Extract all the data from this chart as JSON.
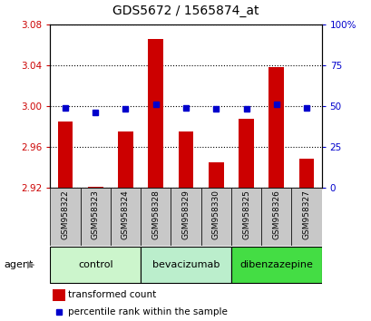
{
  "title": "GDS5672 / 1565874_at",
  "categories": [
    "GSM958322",
    "GSM958323",
    "GSM958324",
    "GSM958328",
    "GSM958329",
    "GSM958330",
    "GSM958325",
    "GSM958326",
    "GSM958327"
  ],
  "red_values": [
    2.985,
    2.921,
    2.975,
    3.065,
    2.975,
    2.945,
    2.987,
    3.038,
    2.948
  ],
  "blue_values": [
    49,
    46,
    48,
    51,
    49,
    48,
    48,
    51,
    49
  ],
  "ylim_left": [
    2.92,
    3.08
  ],
  "ylim_right": [
    0,
    100
  ],
  "yticks_left": [
    2.92,
    2.96,
    3.0,
    3.04,
    3.08
  ],
  "yticks_right_vals": [
    0,
    25,
    50,
    75,
    100
  ],
  "yticks_right_labels": [
    "0",
    "25",
    "50",
    "75",
    "100%"
  ],
  "groups": [
    {
      "label": "control",
      "indices": [
        0,
        1,
        2
      ],
      "color": "#ccf5cc"
    },
    {
      "label": "bevacizumab",
      "indices": [
        3,
        4,
        5
      ],
      "color": "#bbeecc"
    },
    {
      "label": "dibenzazepine",
      "indices": [
        6,
        7,
        8
      ],
      "color": "#44dd44"
    }
  ],
  "bar_color": "#cc0000",
  "dot_color": "#0000cc",
  "bar_width": 0.5,
  "plot_bg_color": "#ffffff",
  "grid_color": "#000000",
  "left_tick_color": "#cc0000",
  "right_tick_color": "#0000cc",
  "xtick_bg_color": "#c8c8c8",
  "legend_items": [
    {
      "label": "transformed count",
      "color": "#cc0000",
      "marker": "s"
    },
    {
      "label": "percentile rank within the sample",
      "color": "#0000cc",
      "marker": "s"
    }
  ],
  "agent_label": "agent",
  "agent_arrow_color": "#888888"
}
